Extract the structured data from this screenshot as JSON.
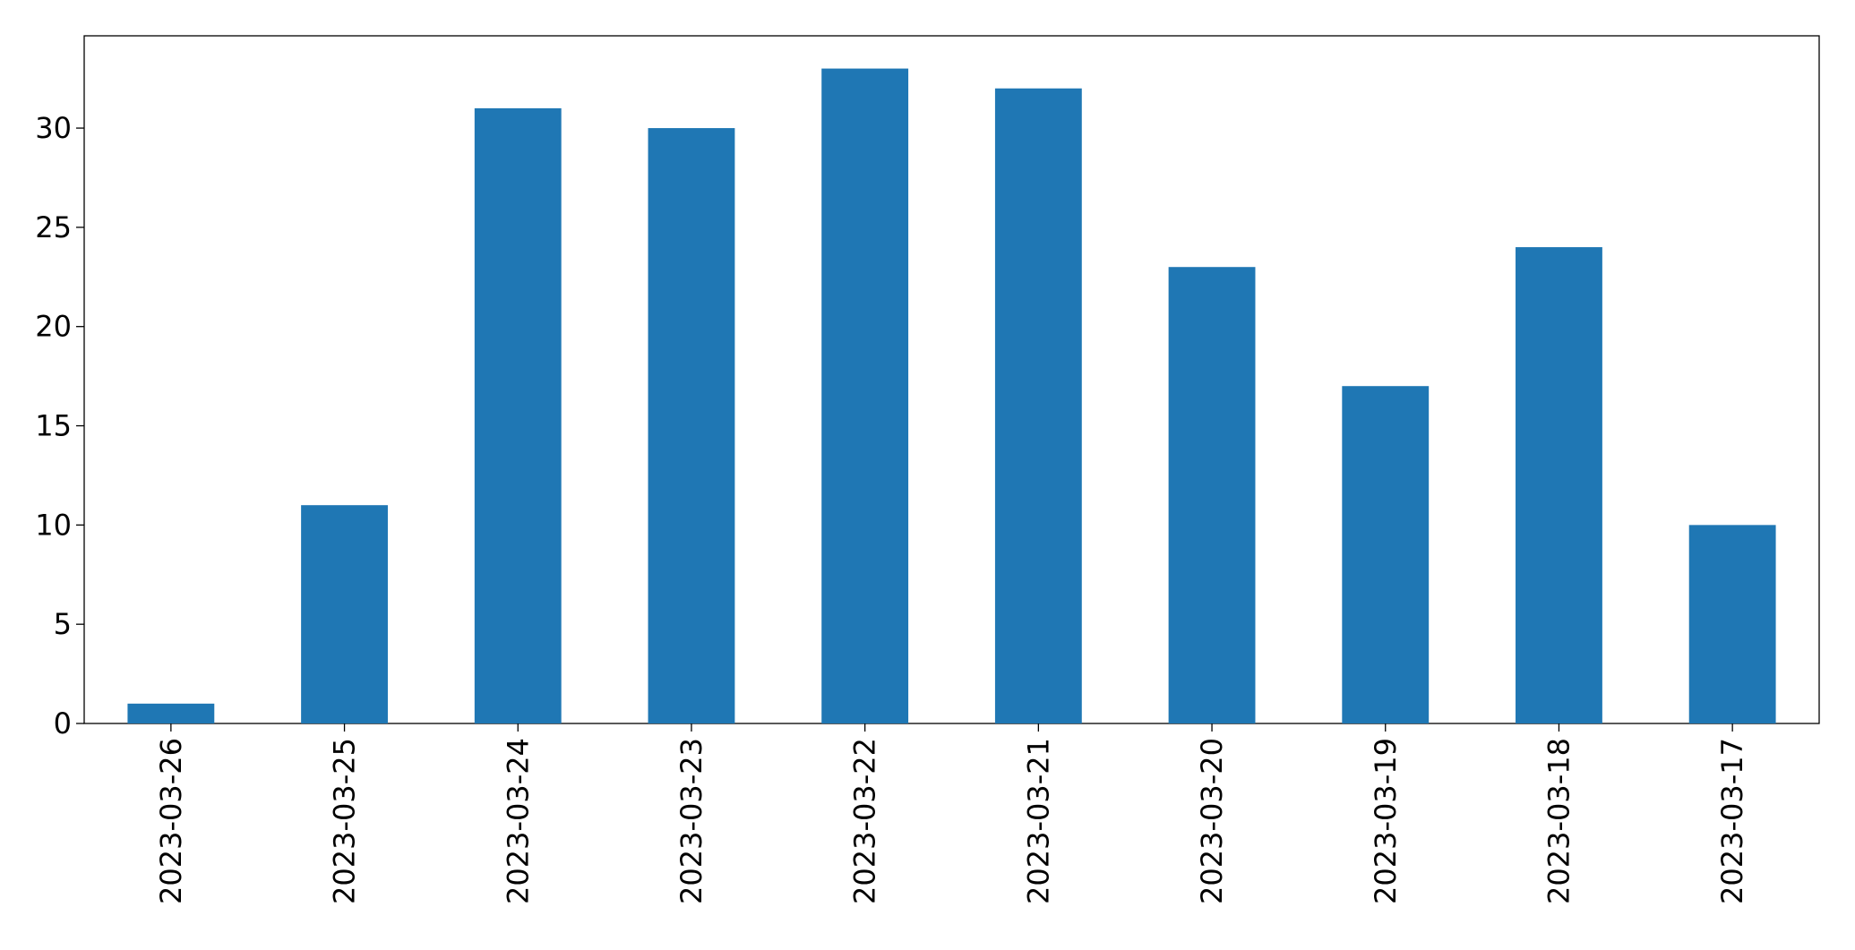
{
  "chart_data": {
    "type": "bar",
    "categories": [
      "2023-03-26",
      "2023-03-25",
      "2023-03-24",
      "2023-03-23",
      "2023-03-22",
      "2023-03-21",
      "2023-03-20",
      "2023-03-19",
      "2023-03-18",
      "2023-03-17"
    ],
    "values": [
      1,
      11,
      31,
      30,
      33,
      32,
      23,
      17,
      24,
      10
    ],
    "color": "#1f77b4",
    "ylim": [
      0,
      34.65
    ],
    "yticks": [
      0,
      5,
      10,
      15,
      20,
      25,
      30
    ],
    "grid": false
  }
}
